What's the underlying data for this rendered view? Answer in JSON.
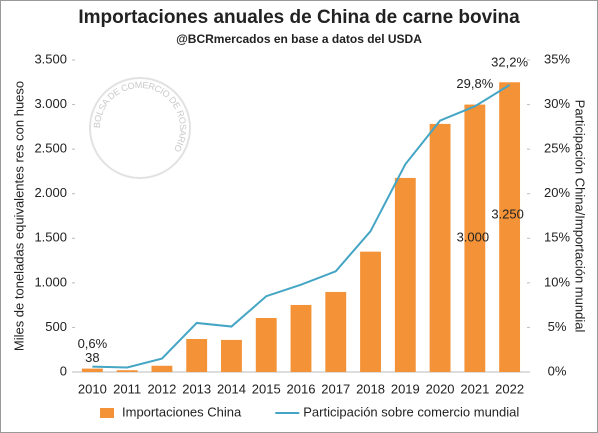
{
  "chart_data": {
    "type": "bar_line",
    "title": "Importaciones anuales de China de carne bovina",
    "subtitle": "@BCRmercados en base a datos del USDA",
    "watermark": "BOLSA DE COMERCIO DE ROSARIO",
    "y_label": "Miles de toneladas equivalentes res con hueso",
    "y2_label": "Participación China/Importación mundial",
    "categories": [
      "2010",
      "2011",
      "2012",
      "2013",
      "2014",
      "2015",
      "2016",
      "2017",
      "2018",
      "2019",
      "2020",
      "2021",
      "2022"
    ],
    "series": [
      {
        "name": "Importaciones China",
        "type": "bar",
        "color": "#f39237",
        "values": [
          38,
          20,
          70,
          370,
          360,
          606,
          752,
          898,
          1350,
          2177,
          2783,
          3000,
          3250
        ],
        "value_labels": [
          "38",
          null,
          null,
          null,
          null,
          null,
          null,
          null,
          null,
          null,
          null,
          "3.000",
          "3.250"
        ]
      },
      {
        "name": "Participación sobre comercio mundial",
        "type": "line",
        "axis": "y2",
        "color": "#45a5c4",
        "values": [
          0.6,
          0.5,
          1.5,
          5.5,
          5.1,
          8.5,
          9.8,
          11.3,
          15.8,
          23.3,
          28.2,
          29.8,
          32.2
        ],
        "value_labels": [
          "0,6%",
          null,
          null,
          null,
          null,
          null,
          null,
          null,
          null,
          null,
          null,
          "29,8%",
          "32,2%"
        ]
      }
    ],
    "ylim": [
      0,
      3500
    ],
    "yticks": [
      0,
      500,
      {
        "value": 1000,
        "label": "1.000"
      },
      {
        "value": 1500,
        "label": "1.500"
      },
      {
        "value": 2000,
        "label": "2.000"
      },
      {
        "value": 2500,
        "label": "2.500"
      },
      {
        "value": 3000,
        "label": "3.000"
      },
      {
        "value": 3500,
        "label": "3.500"
      }
    ],
    "y2lim": [
      0,
      35
    ],
    "y2ticks": [
      {
        "value": 0,
        "label": "0%"
      },
      {
        "value": 5,
        "label": "5%"
      },
      {
        "value": 10,
        "label": "10%"
      },
      {
        "value": 15,
        "label": "15%"
      },
      {
        "value": 20,
        "label": "20%"
      },
      {
        "value": 25,
        "label": "25%"
      },
      {
        "value": 30,
        "label": "30%"
      },
      {
        "value": 35,
        "label": "35%"
      }
    ],
    "legend": "bottom"
  }
}
